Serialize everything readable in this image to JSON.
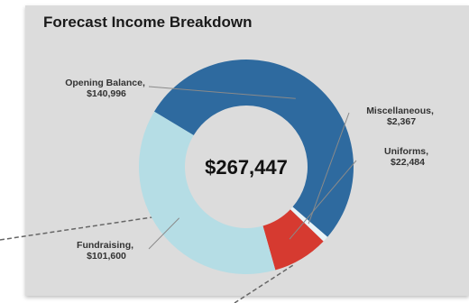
{
  "chart_data": {
    "type": "pie",
    "variant": "donut",
    "title": "Forecast Income Breakdown",
    "center_label": "$267,447",
    "slices": [
      {
        "name": "Opening Balance,",
        "value": 140996,
        "value_label": "$140,996",
        "color": "#2e6a9f"
      },
      {
        "name": "Miscellaneous,",
        "value": 2367,
        "value_label": "$2,367",
        "color": "#e9f3f7"
      },
      {
        "name": "Uniforms,",
        "value": 22484,
        "value_label": "$22,484",
        "color": "#d63a30"
      },
      {
        "name": "Fundraising,",
        "value": 101600,
        "value_label": "$101,600",
        "color": "#b5dde5"
      }
    ]
  }
}
